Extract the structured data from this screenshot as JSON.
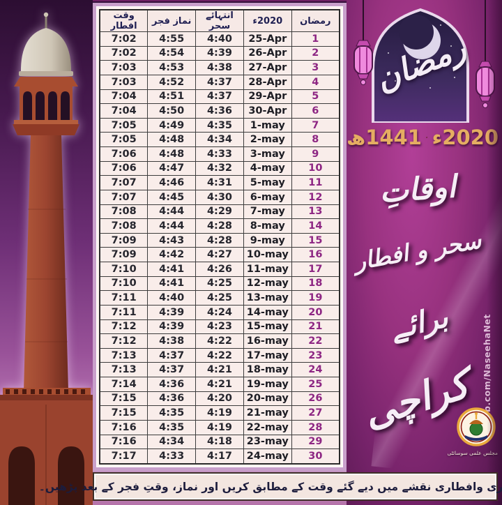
{
  "table": {
    "headers": {
      "day": "رمضان",
      "date": "2020ء",
      "sehri": "انتہائے سحر",
      "fajr": "نماز فجر",
      "iftar": "وقت افطار"
    },
    "rows": [
      {
        "day": "1",
        "date": "25-Apr",
        "sehri": "4:40",
        "fajr": "4:55",
        "iftar": "7:02"
      },
      {
        "day": "2",
        "date": "26-Apr",
        "sehri": "4:39",
        "fajr": "4:54",
        "iftar": "7:02"
      },
      {
        "day": "3",
        "date": "27-Apr",
        "sehri": "4:38",
        "fajr": "4:53",
        "iftar": "7:03"
      },
      {
        "day": "4",
        "date": "28-Apr",
        "sehri": "4:37",
        "fajr": "4:52",
        "iftar": "7:03"
      },
      {
        "day": "5",
        "date": "29-Apr",
        "sehri": "4:37",
        "fajr": "4:51",
        "iftar": "7:04"
      },
      {
        "day": "6",
        "date": "30-Apr",
        "sehri": "4:36",
        "fajr": "4:50",
        "iftar": "7:04"
      },
      {
        "day": "7",
        "date": "1-may",
        "sehri": "4:35",
        "fajr": "4:49",
        "iftar": "7:05"
      },
      {
        "day": "8",
        "date": "2-may",
        "sehri": "4:34",
        "fajr": "4:48",
        "iftar": "7:05"
      },
      {
        "day": "9",
        "date": "3-may",
        "sehri": "4:33",
        "fajr": "4:48",
        "iftar": "7:06"
      },
      {
        "day": "10",
        "date": "4-may",
        "sehri": "4:32",
        "fajr": "4:47",
        "iftar": "7:06"
      },
      {
        "day": "11",
        "date": "5-may",
        "sehri": "4:31",
        "fajr": "4:46",
        "iftar": "7:07"
      },
      {
        "day": "12",
        "date": "6-may",
        "sehri": "4:30",
        "fajr": "4:45",
        "iftar": "7:07"
      },
      {
        "day": "13",
        "date": "7-may",
        "sehri": "4:29",
        "fajr": "4:44",
        "iftar": "7:08"
      },
      {
        "day": "14",
        "date": "8-may",
        "sehri": "4:28",
        "fajr": "4:44",
        "iftar": "7:08"
      },
      {
        "day": "15",
        "date": "9-may",
        "sehri": "4:28",
        "fajr": "4:43",
        "iftar": "7:09"
      },
      {
        "day": "16",
        "date": "10-may",
        "sehri": "4:27",
        "fajr": "4:42",
        "iftar": "7:09"
      },
      {
        "day": "17",
        "date": "11-may",
        "sehri": "4:26",
        "fajr": "4:41",
        "iftar": "7:10"
      },
      {
        "day": "18",
        "date": "12-may",
        "sehri": "4:25",
        "fajr": "4:41",
        "iftar": "7:10"
      },
      {
        "day": "19",
        "date": "13-may",
        "sehri": "4:25",
        "fajr": "4:40",
        "iftar": "7:11"
      },
      {
        "day": "20",
        "date": "14-may",
        "sehri": "4:24",
        "fajr": "4:39",
        "iftar": "7:11"
      },
      {
        "day": "21",
        "date": "15-may",
        "sehri": "4:23",
        "fajr": "4:39",
        "iftar": "7:12"
      },
      {
        "day": "22",
        "date": "16-may",
        "sehri": "4:22",
        "fajr": "4:38",
        "iftar": "7:12"
      },
      {
        "day": "23",
        "date": "17-may",
        "sehri": "4:22",
        "fajr": "4:37",
        "iftar": "7:13"
      },
      {
        "day": "24",
        "date": "18-may",
        "sehri": "4:21",
        "fajr": "4:37",
        "iftar": "7:13"
      },
      {
        "day": "25",
        "date": "19-may",
        "sehri": "4:21",
        "fajr": "4:36",
        "iftar": "7:14"
      },
      {
        "day": "26",
        "date": "20-may",
        "sehri": "4:20",
        "fajr": "4:36",
        "iftar": "7:15"
      },
      {
        "day": "27",
        "date": "21-may",
        "sehri": "4:19",
        "fajr": "4:35",
        "iftar": "7:15"
      },
      {
        "day": "28",
        "date": "22-may",
        "sehri": "4:19",
        "fajr": "4:35",
        "iftar": "7:16"
      },
      {
        "day": "29",
        "date": "23-may",
        "sehri": "4:18",
        "fajr": "4:34",
        "iftar": "7:16"
      },
      {
        "day": "30",
        "date": "24-may",
        "sehri": "4:17",
        "fajr": "4:33",
        "iftar": "7:17"
      }
    ]
  },
  "panel": {
    "ramadan_calligraphy": "رمضان",
    "year_gregorian": "2020ء",
    "year_hijri": "1441ھ",
    "title_line1": "اوقاتِ",
    "title_line2": "سحر و افطار",
    "title_line3": "برائے",
    "title_line4": "کراچی",
    "fb_watermark": "Fb.com/NaseehaNet",
    "logo_caption": "مجلس علمی سوسائٹی"
  },
  "note": {
    "text": "نوٹ: سحری وافطاری نقشے میں دیے گئے وقت کے مطابق کریں اور نماز، وقتِ فجر کے بعد پڑھیں۔"
  },
  "colors": {
    "panel_bg": "#8e2d7c",
    "gold": "#e5ad62",
    "table_cell_bg": "#f9edea",
    "frame_mauve": "#c9a0cb",
    "day_number": "#8d2683",
    "note_bg": "#f3e6e0"
  }
}
